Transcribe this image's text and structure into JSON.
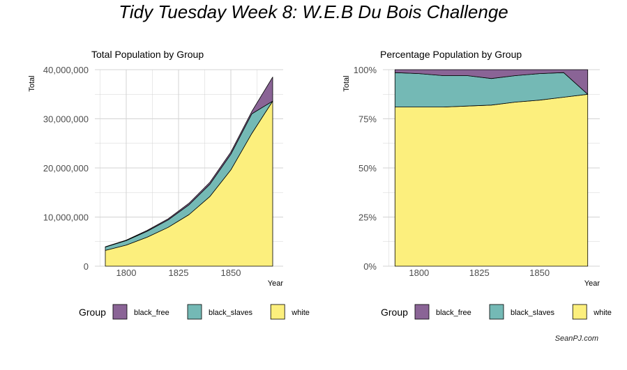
{
  "title": "Tidy Tuesday Week 8: W.E.B Du Bois Challenge",
  "credit": "SeanPJ.com",
  "colors": {
    "black_free": "#8a6496",
    "black_slaves": "#74b9b5",
    "white": "#fcef7d",
    "grid": "#d3d3d3",
    "outline": "#000000"
  },
  "chart_data": [
    {
      "type": "area",
      "stacked": true,
      "title": "Total Population by Group",
      "xlabel": "Year",
      "ylabel": "Total",
      "xlim": [
        1785,
        1875
      ],
      "ylim": [
        0,
        40000000
      ],
      "x_ticks": [
        1800,
        1825,
        1850
      ],
      "y_ticks": [
        0,
        10000000,
        20000000,
        30000000,
        40000000
      ],
      "y_tick_labels": [
        "0",
        "10,000,000",
        "20,000,000",
        "30,000,000",
        "40,000,000"
      ],
      "grid": true,
      "legend_title": "Group",
      "legend_position": "bottom",
      "x": [
        1790,
        1800,
        1810,
        1820,
        1830,
        1840,
        1850,
        1860,
        1870
      ],
      "series": [
        {
          "name": "white",
          "color": "#fcef7d",
          "values": [
            3200000,
            4300000,
            5900000,
            7900000,
            10500000,
            14200000,
            19600000,
            27000000,
            33600000
          ]
        },
        {
          "name": "black_slaves",
          "color": "#74b9b5",
          "values": [
            700000,
            900000,
            1200000,
            1500000,
            2000000,
            2500000,
            3200000,
            4000000,
            0
          ]
        },
        {
          "name": "black_free",
          "color": "#8a6496",
          "values": [
            60000,
            110000,
            190000,
            230000,
            320000,
            390000,
            430000,
            490000,
            4900000
          ]
        }
      ]
    },
    {
      "type": "area",
      "stacked": true,
      "title": "Percentage Population by Group",
      "xlabel": "Year",
      "ylabel": "Total",
      "xlim": [
        1785,
        1875
      ],
      "ylim": [
        0,
        100
      ],
      "x_ticks": [
        1800,
        1825,
        1850
      ],
      "y_ticks": [
        0,
        25,
        50,
        75,
        100
      ],
      "y_tick_labels": [
        "0%",
        "25%",
        "50%",
        "75%",
        "100%"
      ],
      "grid": true,
      "legend_title": "Group",
      "legend_position": "bottom",
      "x": [
        1790,
        1800,
        1810,
        1820,
        1830,
        1840,
        1850,
        1860,
        1870
      ],
      "series": [
        {
          "name": "white",
          "color": "#fcef7d",
          "values": [
            81,
            81,
            81,
            81.5,
            82,
            83.5,
            84.5,
            86,
            87.5
          ]
        },
        {
          "name": "black_slaves",
          "color": "#74b9b5",
          "values": [
            17.5,
            17,
            16,
            15.5,
            13.5,
            13.5,
            13.5,
            12.5,
            0
          ]
        },
        {
          "name": "black_free",
          "color": "#8a6496",
          "values": [
            1.5,
            2,
            3,
            3,
            4.5,
            3,
            2,
            1.5,
            12.5
          ]
        }
      ]
    }
  ]
}
